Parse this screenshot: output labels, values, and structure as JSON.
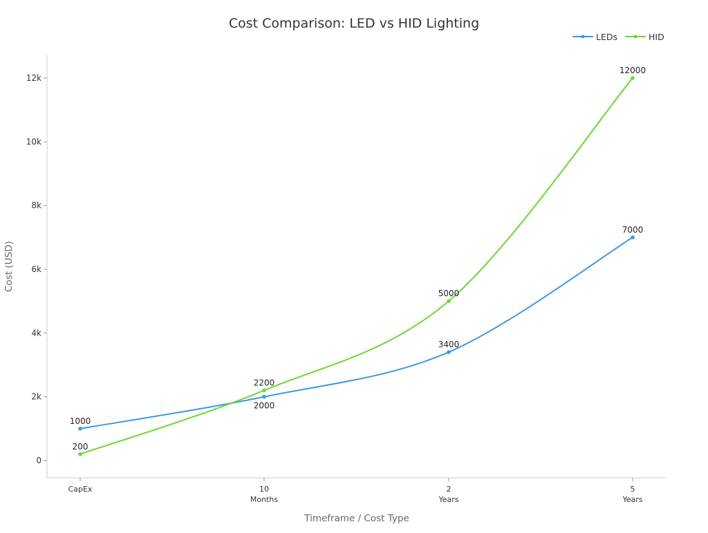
{
  "chart_data": {
    "type": "line",
    "title": "Cost Comparison: LED vs HID Lighting",
    "xlabel": "Timeframe / Cost Type",
    "ylabel": "Cost (USD)",
    "categories": [
      [
        "CapEx"
      ],
      [
        "10",
        "Months"
      ],
      [
        "2",
        "Years"
      ],
      [
        "5",
        "Years"
      ]
    ],
    "ylim": [
      0,
      12700
    ],
    "yticks": [
      0,
      2000,
      4000,
      6000,
      8000,
      10000,
      12000
    ],
    "ytick_labels": [
      "0",
      "2k",
      "4k",
      "6k",
      "8k",
      "10k",
      "12k"
    ],
    "grid": false,
    "legend_position": "top-right",
    "smooth": true,
    "series": [
      {
        "name": "LEDs",
        "color": "#3a97e4",
        "values": [
          1000,
          2000,
          3400,
          7000
        ]
      },
      {
        "name": "HID",
        "color": "#6cd630",
        "values": [
          200,
          2200,
          5000,
          12000
        ]
      }
    ]
  }
}
